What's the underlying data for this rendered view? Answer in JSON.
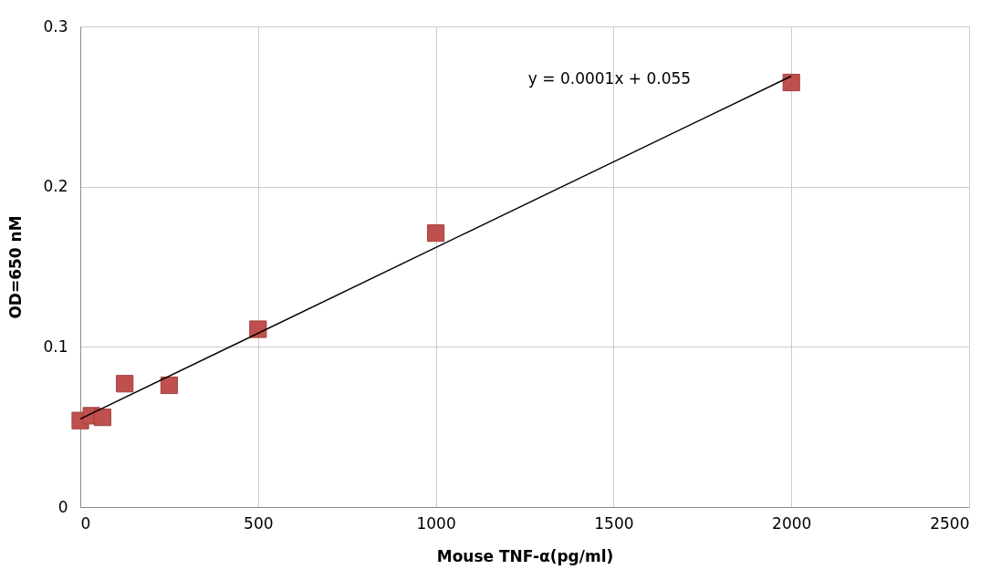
{
  "chart_data": {
    "type": "scatter",
    "xlabel": "Mouse TNF-α(pg/ml)",
    "ylabel": "OD=650 nM",
    "xlim": [
      0,
      2500
    ],
    "xticks": [
      0,
      500,
      1000,
      1500,
      2000,
      2500
    ],
    "ylim": [
      0,
      0.3
    ],
    "yticks": [
      0,
      0.1,
      0.2,
      0.3
    ],
    "grid": true,
    "marker": "square",
    "series": [
      {
        "color": "#c0504d",
        "x": [
          0,
          31.25,
          62.5,
          125,
          250,
          500,
          1000,
          2000
        ],
        "values": [
          0.054,
          0.057,
          0.056,
          0.077,
          0.076,
          0.111,
          0.171,
          0.265
        ]
      },
      {
        "type": "line",
        "marker": "none",
        "color": "#000000",
        "x": [
          0,
          2000
        ],
        "values": [
          0.055,
          0.269
        ]
      }
    ],
    "annotations": [
      "y = 0.0001x + 0.055"
    ]
  }
}
